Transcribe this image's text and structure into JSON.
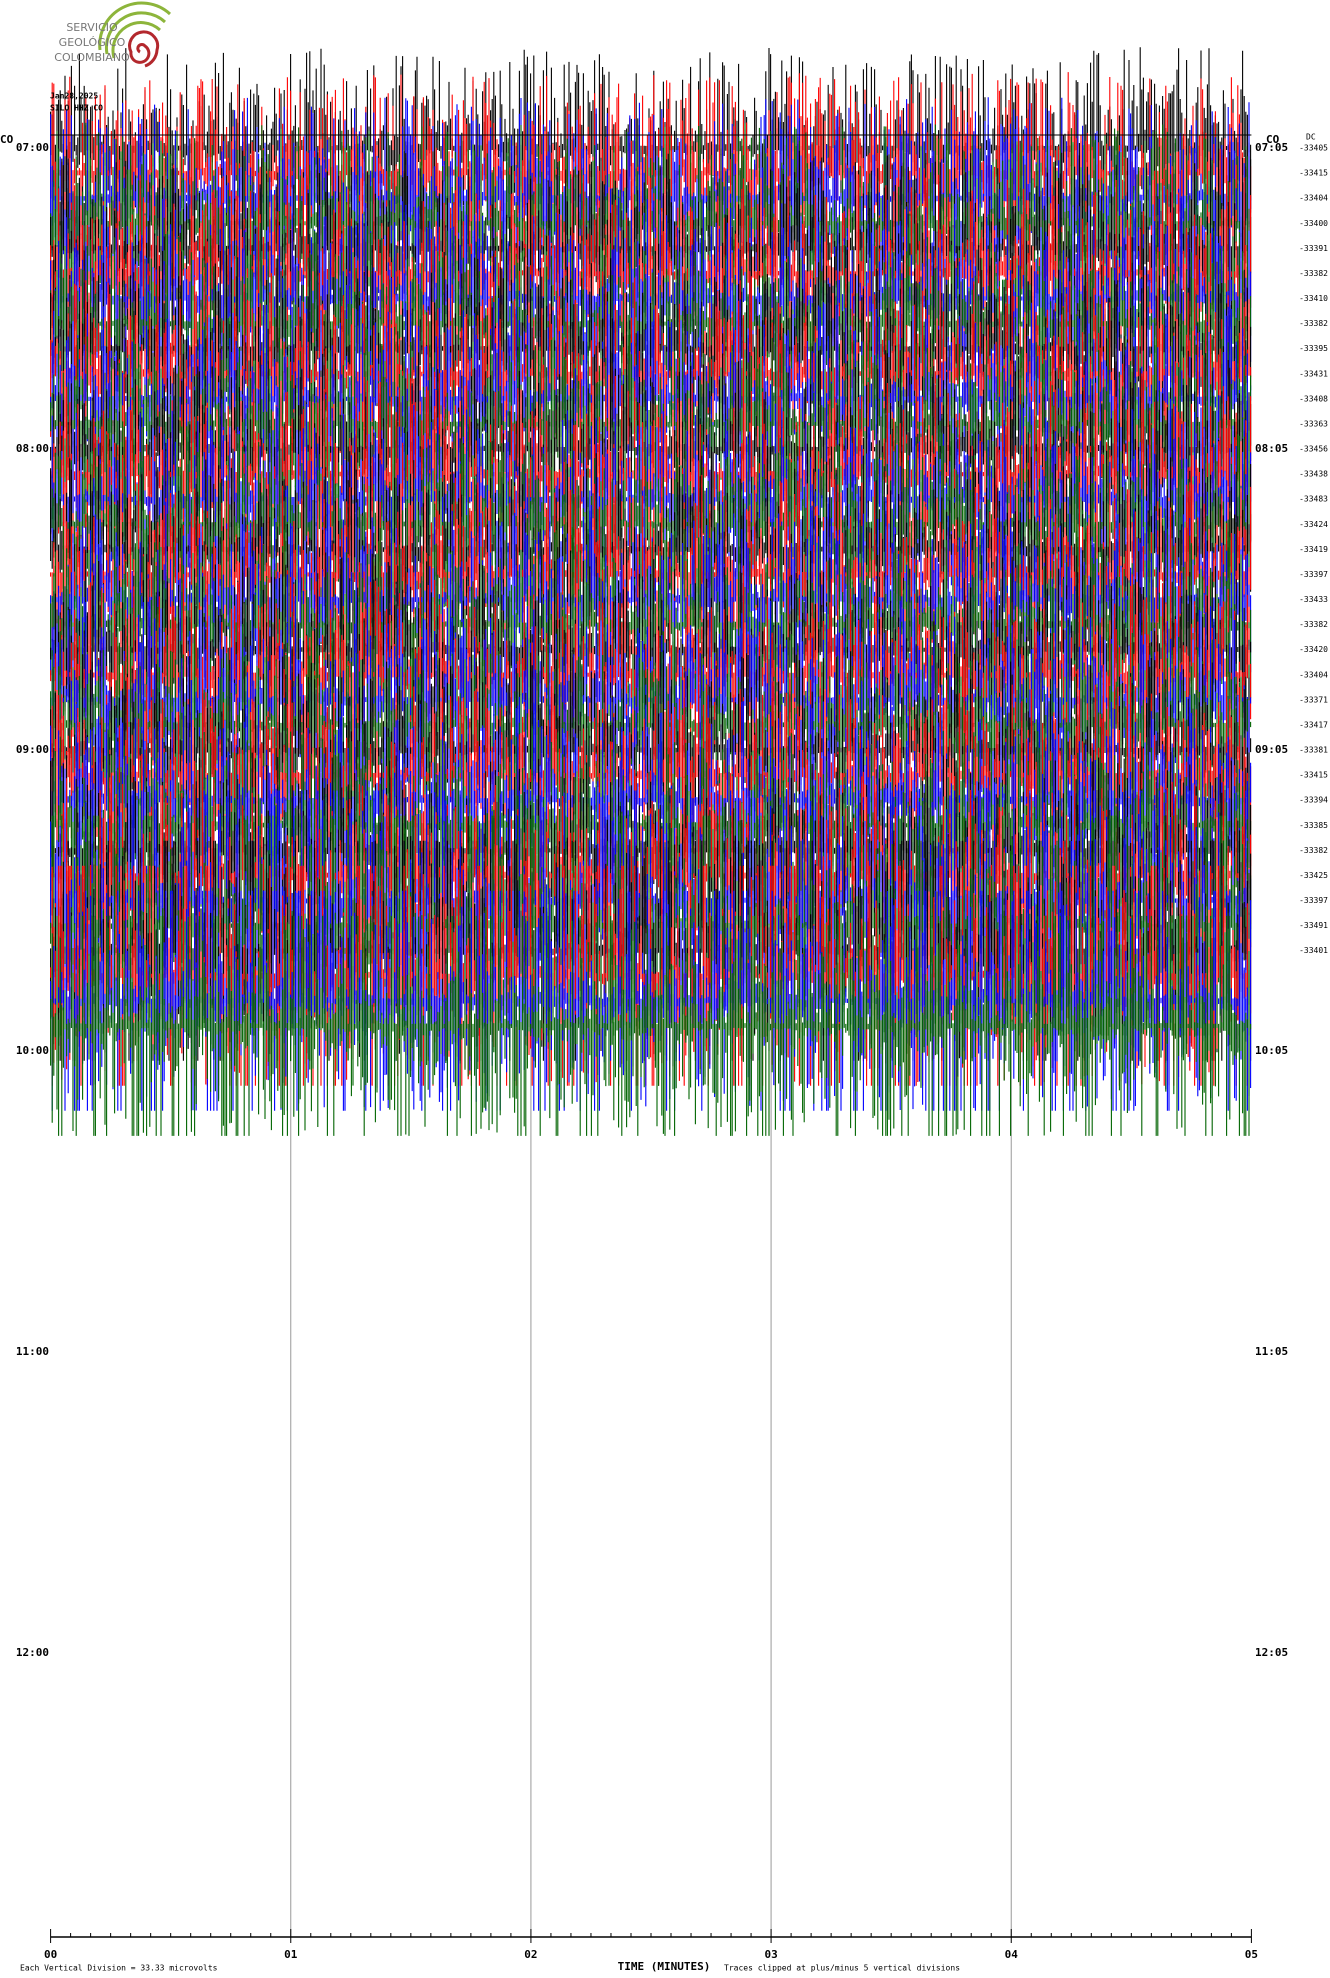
{
  "logo": {
    "lines": [
      "SERVICIO",
      "GEOLÓGICO",
      "COLOMBIANO"
    ]
  },
  "header": {
    "date": "Jan28,2025",
    "station": "SILO HHZ CO"
  },
  "left_network": "CO",
  "right_network": "CO",
  "dc_heading": "DC",
  "left_times": [
    "07:00",
    "08:00",
    "09:00",
    "10:00",
    "11:00",
    "12:00"
  ],
  "right_times": [
    "07:05",
    "08:05",
    "09:05",
    "10:05",
    "11:05",
    "12:05"
  ],
  "dc_offsets": [
    "-33405",
    "-33415",
    "-33404",
    "-33400",
    "-33391",
    "-33382",
    "-33410",
    "-33382",
    "-33395",
    "-33431",
    "-33408",
    "-33363",
    "-33456",
    "-33438",
    "-33483",
    "-33424",
    "-33419",
    "-33397",
    "-33433",
    "-33382",
    "-33420",
    "-33404",
    "-33371",
    "-33417",
    "-33381",
    "-33415",
    "-33394",
    "-33385",
    "-33382",
    "-33425",
    "-33397",
    "-33491",
    "-33401"
  ],
  "x_axis": {
    "labels": [
      "00",
      "01",
      "02",
      "03",
      "04",
      "05"
    ],
    "title": "TIME (MINUTES)"
  },
  "footer": {
    "scale": "Each Vertical Division =  33.33 microvolts",
    "clip": "Traces clipped at plus/minus 5 vertical divisions"
  }
}
